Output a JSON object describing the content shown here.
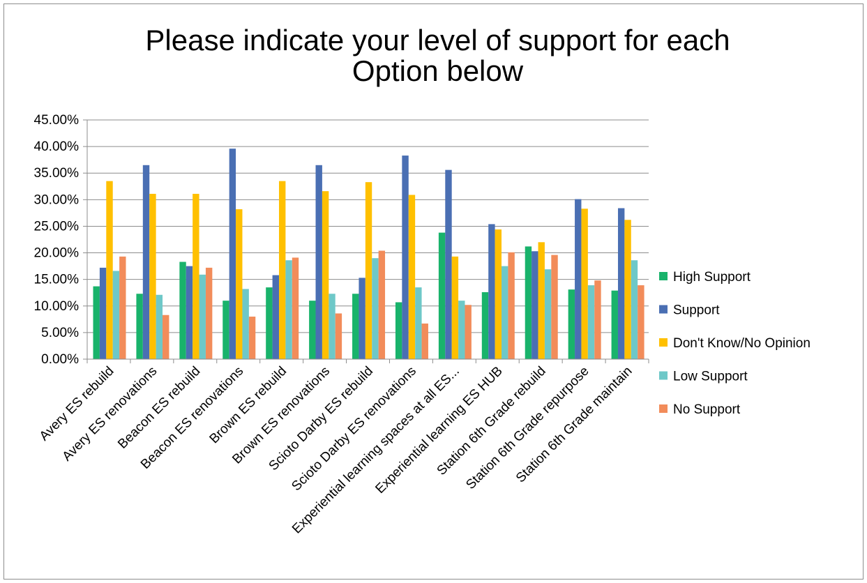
{
  "chart_data": {
    "type": "bar",
    "title_line1": "Please indicate your level of support for each",
    "title_line2": "Option below",
    "xlabel": "",
    "ylabel": "",
    "ylim": [
      0,
      45
    ],
    "y_ticks": [
      "0.00%",
      "5.00%",
      "10.00%",
      "15.00%",
      "20.00%",
      "25.00%",
      "30.00%",
      "35.00%",
      "40.00%",
      "45.00%"
    ],
    "grid": true,
    "legend_position": "right",
    "categories": [
      "Avery ES rebuild",
      "Avery ES renovations",
      "Beacon ES rebuild",
      "Beacon ES renovations",
      "Brown ES rebuild",
      "Brown ES renovations",
      "Scioto Darby ES rebuild",
      "Scioto Darby ES renovations",
      "Experiential learning spaces at all ES...",
      "Experiential learning ES HUB",
      "Station 6th Grade rebuild",
      "Station 6th Grade repurpose",
      "Station 6th Grade maintain"
    ],
    "series": [
      {
        "name": "High Support",
        "color": "#19b36b",
        "values": [
          13.7,
          12.3,
          18.3,
          11.0,
          13.5,
          11.0,
          12.3,
          10.7,
          23.8,
          12.6,
          21.2,
          13.1,
          12.9
        ]
      },
      {
        "name": "Support",
        "color": "#4a6fb3",
        "values": [
          17.2,
          36.5,
          17.5,
          39.6,
          15.8,
          36.5,
          15.3,
          38.3,
          35.6,
          25.4,
          20.3,
          30.1,
          28.4
        ]
      },
      {
        "name": "Don't Know/No Opinion",
        "color": "#ffc000",
        "values": [
          33.5,
          31.1,
          31.1,
          28.2,
          33.5,
          31.6,
          33.3,
          30.9,
          19.3,
          24.4,
          22.0,
          28.3,
          26.2
        ]
      },
      {
        "name": "Low Support",
        "color": "#6ec8c8",
        "values": [
          16.6,
          12.1,
          15.9,
          13.2,
          18.6,
          12.3,
          19.0,
          13.5,
          11.0,
          17.5,
          16.9,
          13.9,
          18.6
        ]
      },
      {
        "name": "No Support",
        "color": "#f28c5a",
        "values": [
          19.3,
          8.3,
          17.2,
          8.0,
          19.1,
          8.6,
          20.4,
          6.7,
          10.2,
          20.1,
          19.6,
          14.8,
          13.9
        ]
      }
    ],
    "colors": {
      "grid": "#8c8c8c",
      "axis": "#8c8c8c",
      "border": "#8c8c8c"
    }
  }
}
